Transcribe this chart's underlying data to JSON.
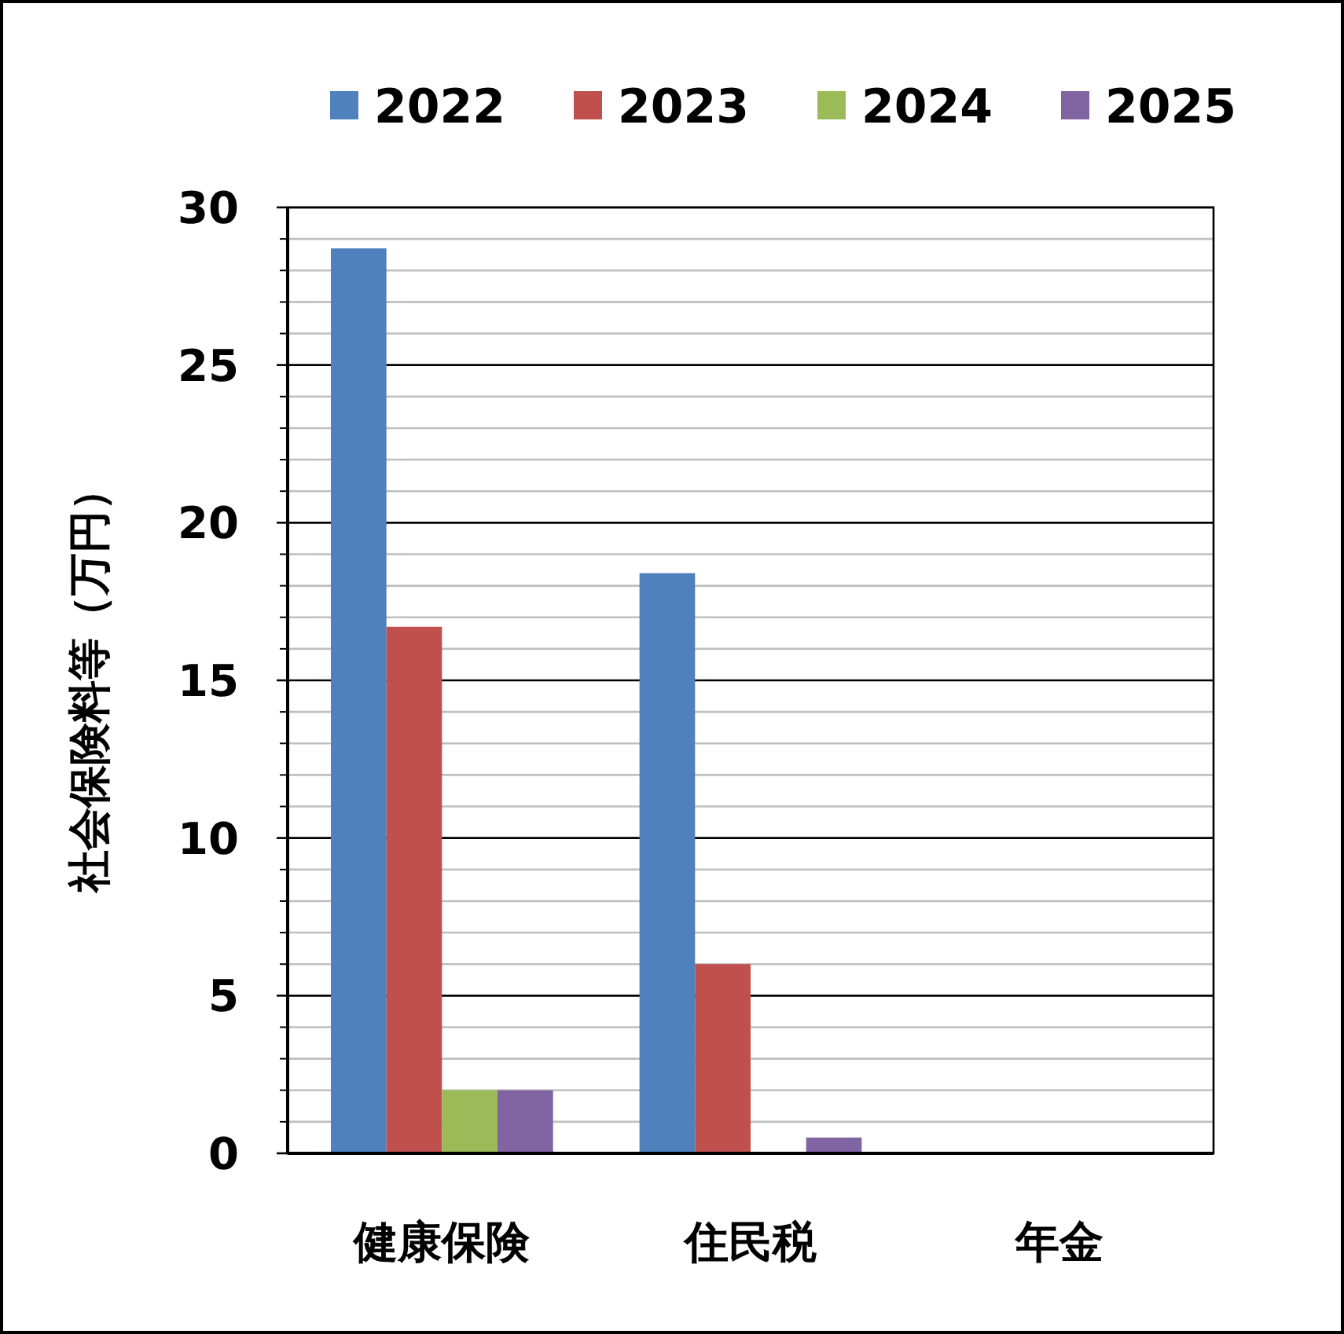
{
  "chart_data": {
    "type": "bar",
    "ylabel": "社会保険料等（万円）",
    "categories": [
      "健康保険",
      "住民税",
      "年金"
    ],
    "series": [
      {
        "name": "2022",
        "color": "#4f81bd",
        "values": [
          28.7,
          18.4,
          0
        ]
      },
      {
        "name": "2023",
        "color": "#c0504d",
        "values": [
          16.7,
          6.0,
          0
        ]
      },
      {
        "name": "2024",
        "color": "#9bbb59",
        "values": [
          2.0,
          0,
          0
        ]
      },
      {
        "name": "2025",
        "color": "#8064a2",
        "values": [
          2.0,
          0.5,
          0
        ]
      }
    ],
    "ylim": [
      0,
      30
    ],
    "yticks": [
      0,
      5,
      10,
      15,
      20,
      25,
      30
    ],
    "grid": "y",
    "legend": "top"
  }
}
